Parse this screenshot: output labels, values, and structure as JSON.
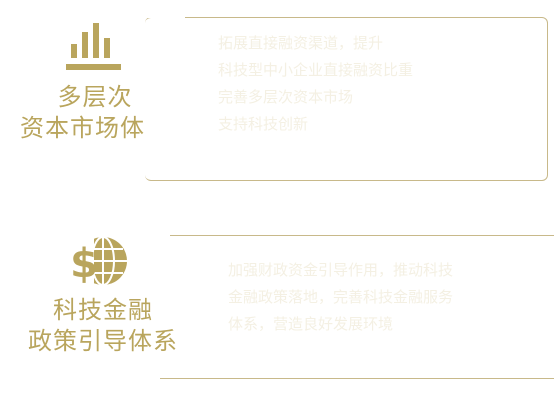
{
  "accent_color": "#b9a55d",
  "sections": [
    {
      "icon": "bar-chart-icon",
      "title_line1": "多层次",
      "title_line2": "资本市场体系",
      "lines": [
        "拓展直接融资渠道，提升",
        "科技型中小企业直接融资比重",
        "完善多层次资本市场",
        "支持科技创新"
      ]
    },
    {
      "icon": "dollar-globe-icon",
      "title_line1": "科技金融",
      "title_line2": "政策引导体系",
      "lines": [
        "加强财政资金引导作用，推动科技",
        "金融政策落地，完善科技金融服务",
        "体系，营造良好发展环境"
      ]
    }
  ]
}
